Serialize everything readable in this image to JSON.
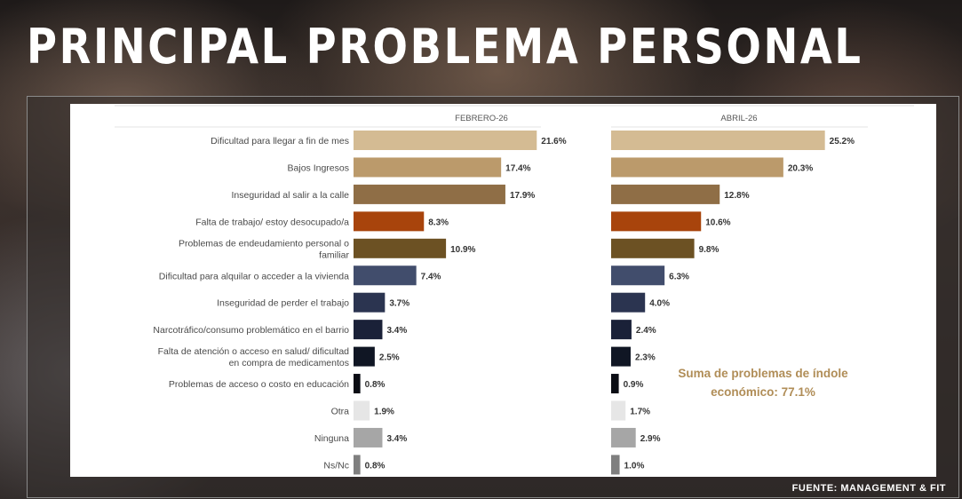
{
  "title": "PRINCIPAL PROBLEMA PERSONAL",
  "source": "FUENTE: MANAGEMENT & FIT",
  "annotation": [
    "Suma de problemas de índole",
    "económico: 77.1%"
  ],
  "colors": {
    "annotation": "#b08d57",
    "label_text": "#4a4a4a"
  },
  "chart_data": {
    "type": "bar",
    "orientation": "horizontal",
    "categories": [
      [
        "Dificultad para llegar a fin de mes"
      ],
      [
        "Bajos Ingresos"
      ],
      [
        "Inseguridad al salir a la calle"
      ],
      [
        "Falta de trabajo/ estoy desocupado/a"
      ],
      [
        "Problemas de endeudamiento personal o",
        "familiar"
      ],
      [
        "Dificultad para alquilar o acceder a la vivienda"
      ],
      [
        "Inseguridad de perder el trabajo"
      ],
      [
        "Narcotráfico/consumo problemático en el barrio"
      ],
      [
        "Falta de atención o acceso en salud/ dificultad",
        "en compra de medicamentos"
      ],
      [
        "Problemas de acceso o costo en educación"
      ],
      [
        "Otra"
      ],
      [
        "Ninguna"
      ],
      [
        "Ns/Nc"
      ]
    ],
    "bar_colors": [
      "#d4bb93",
      "#bb9a6b",
      "#8f6e46",
      "#a8440c",
      "#6c5123",
      "#414d6c",
      "#2b3450",
      "#1a2138",
      "#101624",
      "#0b0d14",
      "#e6e6e6",
      "#a6a6a6",
      "#7f7f7f"
    ],
    "series": [
      {
        "name": "FEBRERO-26",
        "values": [
          21.6,
          17.4,
          17.9,
          8.3,
          10.9,
          7.4,
          3.7,
          3.4,
          2.5,
          0.8,
          1.9,
          3.4,
          0.8
        ]
      },
      {
        "name": "ABRIL-26",
        "values": [
          25.2,
          20.3,
          12.8,
          10.6,
          9.8,
          6.3,
          4.0,
          2.4,
          2.3,
          0.9,
          1.7,
          2.9,
          1.0
        ]
      }
    ],
    "value_suffix": "%"
  }
}
